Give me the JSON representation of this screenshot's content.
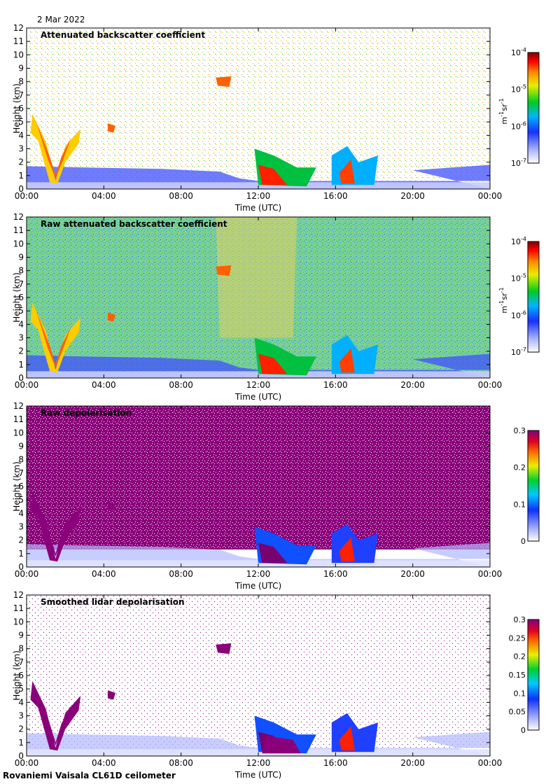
{
  "date": "2 Mar 2022",
  "footer": "Rovaniemi Vaisala CL61D ceilometer",
  "chart_data": [
    {
      "type": "heatmap",
      "id": "p1",
      "title": "Attenuated backscatter coefficient",
      "xlabel": "Time (UTC)",
      "ylabel": "Height (km)",
      "xlim": [
        0,
        24
      ],
      "ylim": [
        0,
        12
      ],
      "xticks": [
        "00:00",
        "04:00",
        "08:00",
        "12:00",
        "16:00",
        "20:00",
        "00:00"
      ],
      "yticks": [
        "0",
        "1",
        "2",
        "3",
        "4",
        "5",
        "6",
        "7",
        "8",
        "9",
        "10",
        "11",
        "12"
      ],
      "colorbar": {
        "scale": "log",
        "range": [
          1e-07,
          0.0001
        ],
        "ticks": [
          {
            "base": "10",
            "exp": "-4"
          },
          {
            "base": "10",
            "exp": "-5"
          },
          {
            "base": "10",
            "exp": "-6"
          },
          {
            "base": "10",
            "exp": "-7"
          }
        ],
        "unit_parts": [
          {
            "t": "m",
            "sup": "-1"
          },
          {
            "t": " sr",
            "sup": "-1"
          }
        ]
      }
    },
    {
      "type": "heatmap",
      "id": "p2",
      "title": "Raw attenuated backscatter coefficient",
      "xlabel": "Time (UTC)",
      "ylabel": "Height (km)",
      "xlim": [
        0,
        24
      ],
      "ylim": [
        0,
        12
      ],
      "xticks": [
        "00:00",
        "04:00",
        "08:00",
        "12:00",
        "16:00",
        "20:00",
        "00:00"
      ],
      "yticks": [
        "0",
        "1",
        "2",
        "3",
        "4",
        "5",
        "6",
        "7",
        "8",
        "9",
        "10",
        "11",
        "12"
      ],
      "colorbar": {
        "scale": "log",
        "range": [
          1e-07,
          0.0001
        ],
        "ticks": [
          {
            "base": "10",
            "exp": "-4"
          },
          {
            "base": "10",
            "exp": "-5"
          },
          {
            "base": "10",
            "exp": "-6"
          },
          {
            "base": "10",
            "exp": "-7"
          }
        ],
        "unit_parts": [
          {
            "t": "m",
            "sup": "-1"
          },
          {
            "t": " sr",
            "sup": "-1"
          }
        ]
      }
    },
    {
      "type": "heatmap",
      "id": "p3",
      "title": "Raw depolarisation",
      "xlabel": "Time (UTC)",
      "ylabel": "Height (km)",
      "xlim": [
        0,
        24
      ],
      "ylim": [
        0,
        12
      ],
      "xticks": [
        "00:00",
        "04:00",
        "08:00",
        "12:00",
        "16:00",
        "20:00",
        "00:00"
      ],
      "yticks": [
        "0",
        "1",
        "2",
        "3",
        "4",
        "5",
        "6",
        "7",
        "8",
        "9",
        "10",
        "11",
        "12"
      ],
      "colorbar": {
        "scale": "linear",
        "range": [
          0,
          0.3
        ],
        "ticks": [
          {
            "label": "0.3",
            "v": 0.3
          },
          {
            "label": "0.2",
            "v": 0.2
          },
          {
            "label": "0.1",
            "v": 0.1
          },
          {
            "label": "0",
            "v": 0
          }
        ],
        "unit_parts": []
      }
    },
    {
      "type": "heatmap",
      "id": "p4",
      "title": "Smoothed lidar depolarisation",
      "xlabel": "Time (UTC)",
      "ylabel": "Height (km)",
      "xlim": [
        0,
        24
      ],
      "ylim": [
        0,
        12
      ],
      "xticks": [
        "00:00",
        "04:00",
        "08:00",
        "12:00",
        "16:00",
        "20:00",
        "00:00"
      ],
      "yticks": [
        "0",
        "1",
        "2",
        "3",
        "4",
        "5",
        "6",
        "7",
        "8",
        "9",
        "10",
        "11",
        "12"
      ],
      "colorbar": {
        "scale": "linear",
        "range": [
          0,
          0.3
        ],
        "ticks": [
          {
            "label": "0.3",
            "v": 0.3
          },
          {
            "label": "0.25",
            "v": 0.25
          },
          {
            "label": "0.2",
            "v": 0.2
          },
          {
            "label": "0.15",
            "v": 0.15
          },
          {
            "label": "0.1",
            "v": 0.1
          },
          {
            "label": "0.05",
            "v": 0.05
          },
          {
            "label": "0",
            "v": 0
          }
        ],
        "unit_parts": []
      }
    }
  ]
}
